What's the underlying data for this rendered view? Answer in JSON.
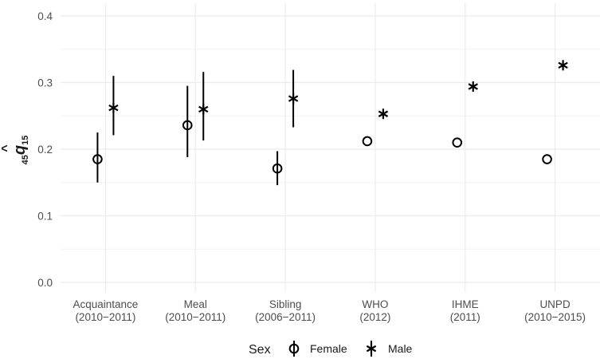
{
  "chart_data": {
    "type": "scatter",
    "categories": [
      [
        "Acquaintance",
        "(2010−2011)"
      ],
      [
        "Meal",
        "(2010−2011)"
      ],
      [
        "Sibling",
        "(2006−2011)"
      ],
      [
        "WHO",
        "(2012)"
      ],
      [
        "IHME",
        "(2011)"
      ],
      [
        "UNPD",
        "(2010−2015)"
      ]
    ],
    "ylabel": {
      "pre": "45",
      "main": "q",
      "hat": "^",
      "sub": "15"
    },
    "ylim": [
      0.0,
      0.4
    ],
    "yticks": [
      "0.0",
      "0.1",
      "0.2",
      "0.3",
      "0.4"
    ],
    "grid": true,
    "legend": {
      "title": "Sex",
      "position": "bottom"
    },
    "series": [
      {
        "name": "Female",
        "marker": "circle",
        "values": [
          0.185,
          0.236,
          0.171,
          0.212,
          0.21,
          0.185
        ],
        "lower": [
          0.15,
          0.188,
          0.146,
          null,
          null,
          null
        ],
        "upper": [
          0.225,
          0.295,
          0.197,
          null,
          null,
          null
        ]
      },
      {
        "name": "Male",
        "marker": "asterisk",
        "values": [
          0.262,
          0.26,
          0.276,
          0.253,
          0.294,
          0.326
        ],
        "lower": [
          0.221,
          0.213,
          0.233,
          null,
          null,
          null
        ],
        "upper": [
          0.31,
          0.316,
          0.319,
          null,
          null,
          null
        ]
      }
    ]
  }
}
